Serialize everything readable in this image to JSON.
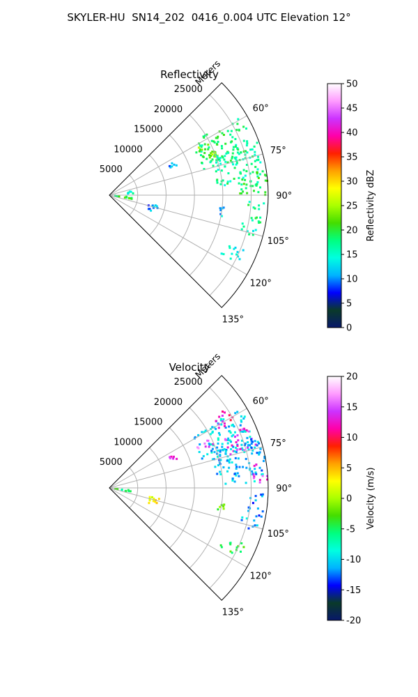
{
  "figure": {
    "title": "SKYLER-HU  SN14_202  0416_0.004 UTC Elevation 12°"
  },
  "colors": {
    "grid": "#b0b0b0",
    "frame": "#000000",
    "background": "#ffffff"
  },
  "chart_data": [
    {
      "type": "polar-sector (PPI radar scan)",
      "title": "Reflectivity",
      "radial_label": "Meters",
      "radial_ticks": [
        5000,
        10000,
        15000,
        20000,
        25000
      ],
      "radial_max": 28000,
      "angle_ticks_deg": [
        60,
        75,
        90,
        105,
        120,
        135
      ],
      "angle_tick_labels": [
        "60°",
        "75°",
        "90°",
        "105°",
        "120°",
        "135°"
      ],
      "angle_range_deg": [
        45,
        135
      ],
      "grid": true,
      "field": "reflectivity",
      "colorbar": {
        "label": "Reflectivity dBZ",
        "min": 0,
        "max": 50,
        "ticks": [
          0,
          5,
          10,
          15,
          20,
          25,
          30,
          35,
          40,
          45,
          50
        ],
        "stops": [
          "#08186b",
          "#0a3a2a",
          "#0000ff",
          "#00b3ff",
          "#00ffe0",
          "#00ff80",
          "#44dd00",
          "#aaff00",
          "#ffff00",
          "#ffa000",
          "#ff2000",
          "#ff00aa",
          "#cc33ff",
          "#ff9cff",
          "#ffffff"
        ]
      },
      "echo_regions": [
        {
          "az_deg": [
            58,
            75
          ],
          "range_m": [
            17000,
            27000
          ],
          "value": 18
        },
        {
          "az_deg": [
            62,
            70
          ],
          "range_m": [
            17500,
            21000
          ],
          "value": 23
        },
        {
          "az_deg": [
            70,
            86
          ],
          "range_m": [
            19000,
            28000
          ],
          "value": 17
        },
        {
          "az_deg": [
            80,
            90
          ],
          "range_m": [
            23000,
            28000
          ],
          "value": 19
        },
        {
          "az_deg": [
            92,
            101
          ],
          "range_m": [
            24500,
            27500
          ],
          "value": 17
        },
        {
          "az_deg": [
            102,
            107
          ],
          "range_m": [
            24000,
            27000
          ],
          "value": 16
        },
        {
          "az_deg": [
            112,
            118
          ],
          "range_m": [
            22000,
            26000
          ],
          "value": 15
        },
        {
          "az_deg": [
            95,
            101
          ],
          "range_m": [
            1000,
            4500
          ],
          "value": 20
        },
        {
          "az_deg": [
            102,
            112
          ],
          "range_m": [
            7000,
            9000
          ],
          "value": 10
        },
        {
          "az_deg": [
            80,
            86
          ],
          "range_m": [
            3000,
            4500
          ],
          "value": 15
        },
        {
          "az_deg": [
            63,
            67
          ],
          "range_m": [
            11500,
            13000
          ],
          "value": 10
        },
        {
          "az_deg": [
            96,
            102
          ],
          "range_m": [
            19500,
            20500
          ],
          "value": 12
        }
      ]
    },
    {
      "type": "polar-sector (PPI radar scan)",
      "title": "Velocity",
      "radial_label": "Meters",
      "radial_ticks": [
        5000,
        10000,
        15000,
        20000,
        25000
      ],
      "radial_max": 28000,
      "angle_ticks_deg": [
        60,
        75,
        90,
        105,
        120,
        135
      ],
      "angle_tick_labels": [
        "60°",
        "75°",
        "90°",
        "105°",
        "120°",
        "135°"
      ],
      "angle_range_deg": [
        45,
        135
      ],
      "grid": true,
      "field": "velocity",
      "colorbar": {
        "label": "Velocity (m/s)",
        "min": -20,
        "max": 20,
        "ticks": [
          -20,
          -15,
          -10,
          -5,
          0,
          5,
          10,
          15,
          20
        ],
        "stops": [
          "#08186b",
          "#0a3a2a",
          "#0000ff",
          "#00b3ff",
          "#00ffe0",
          "#00ff80",
          "#44dd00",
          "#aaff00",
          "#ffff00",
          "#ffa000",
          "#ff2000",
          "#ff00aa",
          "#cc33ff",
          "#ff9cff",
          "#ffffff"
        ]
      },
      "echo_regions": [
        {
          "az_deg": [
            58,
            75
          ],
          "range_m": [
            17000,
            27000
          ],
          "value": -10
        },
        {
          "az_deg": [
            56,
            62
          ],
          "range_m": [
            22000,
            26000
          ],
          "value": 12
        },
        {
          "az_deg": [
            63,
            68
          ],
          "range_m": [
            17000,
            20000
          ],
          "value": 15
        },
        {
          "az_deg": [
            66,
            75
          ],
          "range_m": [
            22000,
            27000
          ],
          "value": 14
        },
        {
          "az_deg": [
            70,
            88
          ],
          "range_m": [
            19000,
            28000
          ],
          "value": -11
        },
        {
          "az_deg": [
            80,
            88
          ],
          "range_m": [
            25500,
            28000
          ],
          "value": 14
        },
        {
          "az_deg": [
            92,
            101
          ],
          "range_m": [
            24500,
            27500
          ],
          "value": -12
        },
        {
          "az_deg": [
            102,
            107
          ],
          "range_m": [
            24000,
            27000
          ],
          "value": -11
        },
        {
          "az_deg": [
            112,
            118
          ],
          "range_m": [
            22000,
            26000
          ],
          "value": -4
        },
        {
          "az_deg": [
            95,
            101
          ],
          "range_m": [
            1000,
            4500
          ],
          "value": -5
        },
        {
          "az_deg": [
            102,
            112
          ],
          "range_m": [
            7000,
            9000
          ],
          "value": 3
        },
        {
          "az_deg": [
            63,
            67
          ],
          "range_m": [
            11500,
            13000
          ],
          "value": 14
        },
        {
          "az_deg": [
            96,
            102
          ],
          "range_m": [
            19500,
            20500
          ],
          "value": -2
        }
      ]
    }
  ]
}
